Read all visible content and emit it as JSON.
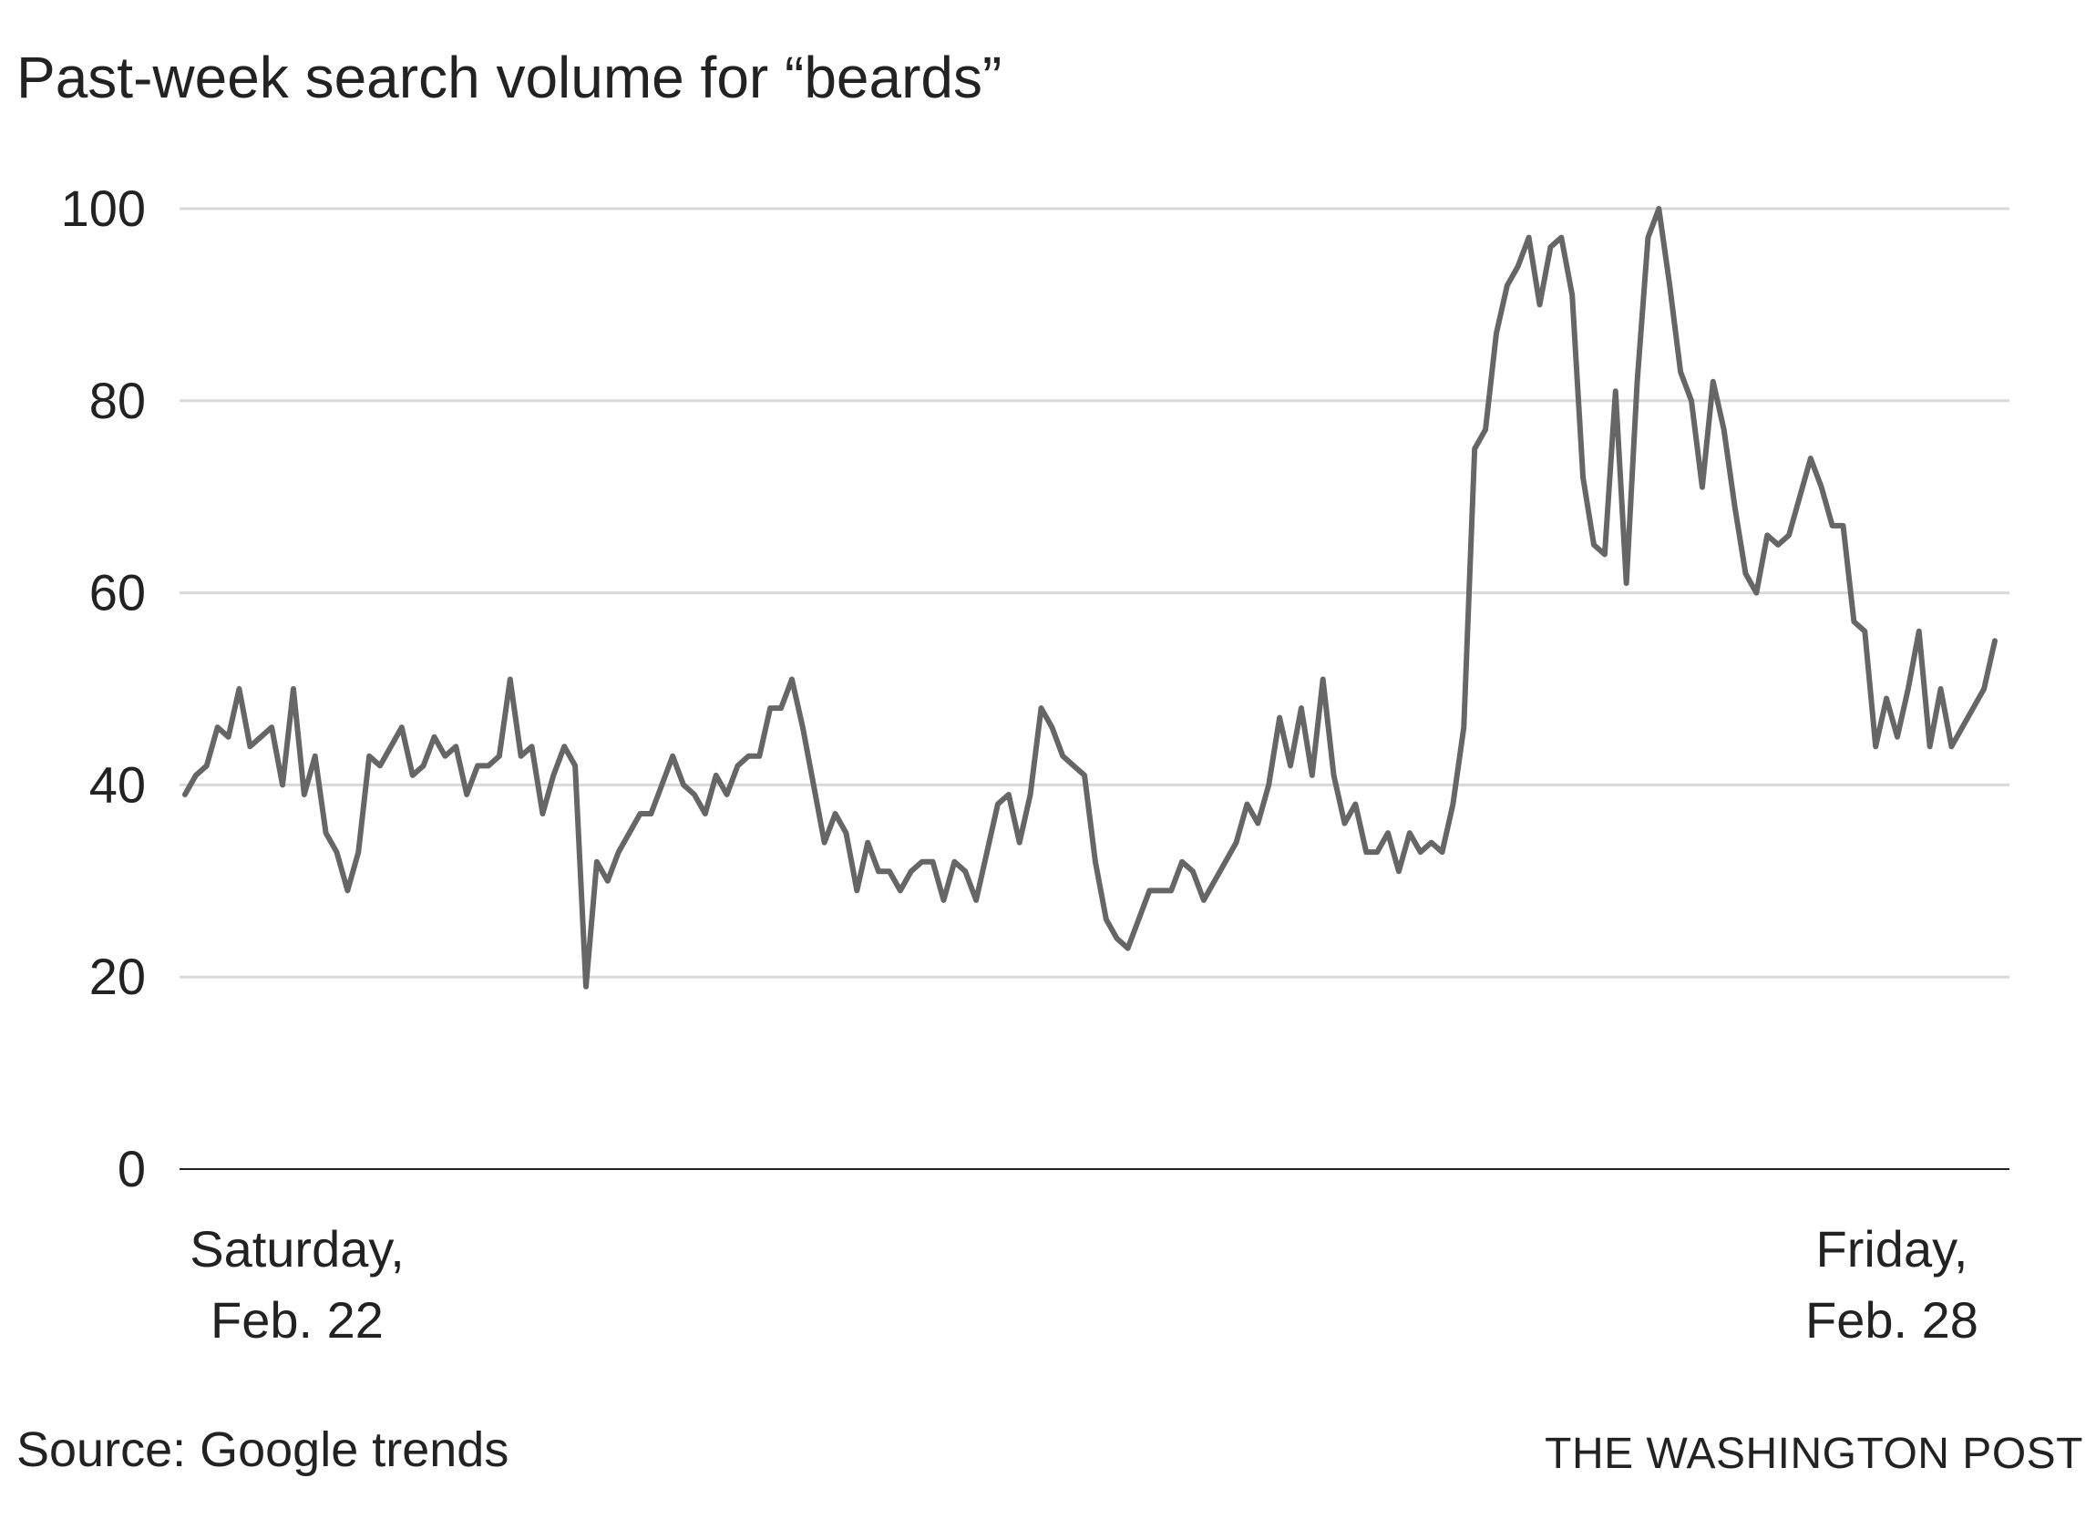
{
  "title": "Past-week search volume for “beards”",
  "source": "Source: Google trends",
  "credit": "THE WASHINGTON POST",
  "colors": {
    "line": "#666666",
    "grid": "#d9d9d9",
    "axis": "#222222",
    "text": "#222222"
  },
  "chart_data": {
    "type": "line",
    "title": "Past-week search volume for “beards”",
    "xlabel": "",
    "ylabel": "",
    "ylim": [
      0,
      100
    ],
    "yticks": [
      0,
      20,
      40,
      60,
      80,
      100
    ],
    "grid": true,
    "x_tick_labels": [
      {
        "line1": "Saturday,",
        "line2": "Feb. 22",
        "position": "start"
      },
      {
        "line1": "Friday,",
        "line2": "Feb. 28",
        "position": "end"
      }
    ],
    "series": [
      {
        "name": "beards",
        "values": [
          39,
          41,
          42,
          46,
          45,
          50,
          44,
          45,
          46,
          40,
          50,
          39,
          43,
          35,
          33,
          29,
          33,
          43,
          42,
          44,
          46,
          41,
          42,
          45,
          43,
          44,
          39,
          42,
          42,
          43,
          51,
          43,
          44,
          37,
          41,
          44,
          42,
          19,
          32,
          30,
          33,
          35,
          37,
          37,
          40,
          43,
          40,
          39,
          37,
          41,
          39,
          42,
          43,
          43,
          48,
          48,
          51,
          46,
          40,
          34,
          37,
          35,
          29,
          34,
          31,
          31,
          29,
          31,
          32,
          32,
          28,
          32,
          31,
          28,
          33,
          38,
          39,
          34,
          39,
          48,
          46,
          43,
          42,
          41,
          32,
          26,
          24,
          23,
          26,
          29,
          29,
          29,
          32,
          31,
          28,
          30,
          32,
          34,
          38,
          36,
          40,
          47,
          42,
          48,
          41,
          51,
          41,
          36,
          38,
          33,
          33,
          35,
          31,
          35,
          33,
          34,
          33,
          38,
          46,
          75,
          77,
          87,
          92,
          94,
          97,
          90,
          96,
          97,
          91,
          72,
          65,
          64,
          81,
          61,
          82,
          97,
          100,
          92,
          83,
          80,
          71,
          82,
          77,
          69,
          62,
          60,
          66,
          65,
          66,
          70,
          74,
          71,
          67,
          67,
          57,
          56,
          44,
          49,
          45,
          50,
          56,
          44,
          50,
          44,
          46,
          48,
          50,
          55
        ]
      }
    ]
  }
}
